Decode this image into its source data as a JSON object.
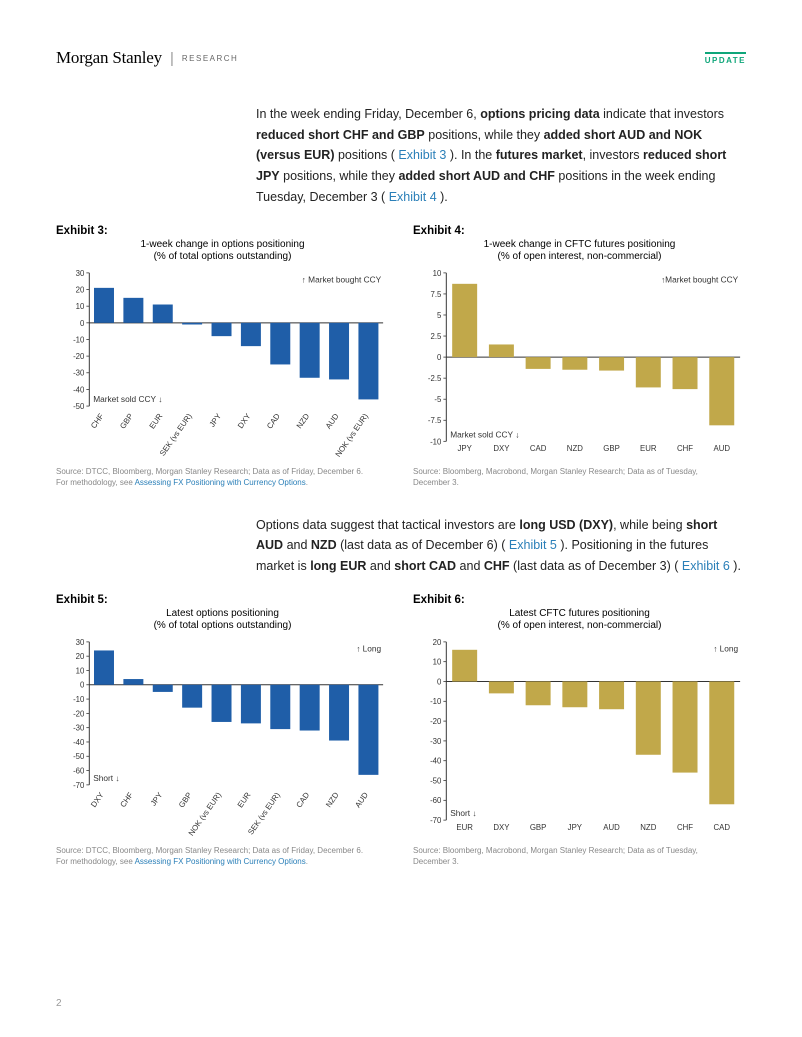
{
  "header": {
    "brand": "Morgan Stanley",
    "sep": "|",
    "research": "RESEARCH",
    "badge": "UPDATE"
  },
  "para1_parts": [
    {
      "t": "In the week ending Friday, December 6, ",
      "b": false
    },
    {
      "t": "options pricing data",
      "b": true
    },
    {
      "t": " indicate that investors ",
      "b": false
    },
    {
      "t": "reduced short CHF and GBP",
      "b": true
    },
    {
      "t": " positions, while they ",
      "b": false
    },
    {
      "t": "added short AUD and NOK (versus EUR)",
      "b": true
    },
    {
      "t": " positions ( ",
      "b": false
    },
    {
      "t": "Exhibit 3",
      "b": false,
      "link": true
    },
    {
      "t": " ). In the ",
      "b": false
    },
    {
      "t": "futures market",
      "b": true
    },
    {
      "t": ", investors ",
      "b": false
    },
    {
      "t": "reduced short JPY",
      "b": true
    },
    {
      "t": " positions, while they ",
      "b": false
    },
    {
      "t": "added short AUD and CHF",
      "b": true
    },
    {
      "t": " positions in the week ending Tuesday, December 3 ( ",
      "b": false
    },
    {
      "t": "Exhibit 4",
      "b": false,
      "link": true
    },
    {
      "t": " ).",
      "b": false
    }
  ],
  "para2_parts": [
    {
      "t": "Options data suggest that tactical investors are ",
      "b": false
    },
    {
      "t": "long USD (DXY)",
      "b": true
    },
    {
      "t": ", while being ",
      "b": false
    },
    {
      "t": "short AUD",
      "b": true
    },
    {
      "t": " and ",
      "b": false
    },
    {
      "t": "NZD",
      "b": true
    },
    {
      "t": " (last data as of December 6) ( ",
      "b": false
    },
    {
      "t": "Exhibit 5",
      "b": false,
      "link": true
    },
    {
      "t": " ). Positioning in the futures market is ",
      "b": false
    },
    {
      "t": "long EUR",
      "b": true
    },
    {
      "t": " and ",
      "b": false
    },
    {
      "t": "short CAD",
      "b": true
    },
    {
      "t": " and ",
      "b": false
    },
    {
      "t": "CHF",
      "b": true
    },
    {
      "t": " (last data as of December 3) ( ",
      "b": false
    },
    {
      "t": "Exhibit 6",
      "b": false,
      "link": true
    },
    {
      "t": " ).",
      "b": false
    }
  ],
  "ex3": {
    "title": "Exhibit 3:",
    "sub1": "1-week change in options positioning",
    "sub2": "(% of total options outstanding)",
    "type": "bar",
    "categories": [
      "CHF",
      "GBP",
      "EUR",
      "SEK (vs EUR)",
      "JPY",
      "DXY",
      "CAD",
      "NZD",
      "AUD",
      "NOK (vs EUR)"
    ],
    "values": [
      21,
      15,
      11,
      -1,
      -8,
      -14,
      -25,
      -33,
      -34,
      -46
    ],
    "bar_color": "#1f5ea8",
    "ymin": -50,
    "ymax": 30,
    "ytick_step": 10,
    "top_annot": "↑ Market bought CCY",
    "bottom_annot": "Market sold CCY ↓",
    "axis_color": "#333",
    "tick_fontsize": 8,
    "xlabel_rotate": -55
  },
  "ex4": {
    "title": "Exhibit 4:",
    "sub1": "1-week change in CFTC futures positioning",
    "sub2": "(% of open interest, non-commercial)",
    "type": "bar",
    "categories": [
      "JPY",
      "DXY",
      "CAD",
      "NZD",
      "GBP",
      "EUR",
      "CHF",
      "AUD"
    ],
    "values": [
      8.7,
      1.5,
      -1.4,
      -1.5,
      -1.6,
      -3.6,
      -3.8,
      -8.1
    ],
    "bar_color": "#c1a84a",
    "ymin": -10,
    "ymax": 10,
    "ytick_step": 2.5,
    "top_annot": "↑Market bought CCY",
    "bottom_annot": "Market sold CCY ↓",
    "axis_color": "#333",
    "tick_fontsize": 8,
    "xlabel_rotate": 0
  },
  "ex5": {
    "title": "Exhibit 5:",
    "sub1": "Latest options positioning",
    "sub2": "(% of total options outstanding)",
    "type": "bar",
    "categories": [
      "DXY",
      "CHF",
      "JPY",
      "GBP",
      "NOK (vs EUR)",
      "EUR",
      "SEK (vs EUR)",
      "CAD",
      "NZD",
      "AUD"
    ],
    "values": [
      24,
      4,
      -5,
      -16,
      -26,
      -27,
      -31,
      -32,
      -39,
      -63
    ],
    "bar_color": "#1f5ea8",
    "ymin": -70,
    "ymax": 30,
    "ytick_step": 10,
    "top_annot": "↑ Long",
    "bottom_annot": "Short ↓",
    "axis_color": "#333",
    "tick_fontsize": 8,
    "xlabel_rotate": -55
  },
  "ex6": {
    "title": "Exhibit 6:",
    "sub1": "Latest CFTC futures positioning",
    "sub2": "(% of open interest, non-commercial)",
    "type": "bar",
    "categories": [
      "EUR",
      "DXY",
      "GBP",
      "JPY",
      "AUD",
      "NZD",
      "CHF",
      "CAD"
    ],
    "values": [
      16,
      -6,
      -12,
      -13,
      -14,
      -37,
      -46,
      -62
    ],
    "bar_color": "#c1a84a",
    "ymin": -70,
    "ymax": 20,
    "ytick_step": 10,
    "top_annot": "↑ Long",
    "bottom_annot": "Short ↓",
    "axis_color": "#333",
    "tick_fontsize": 8,
    "xlabel_rotate": 0
  },
  "src3": {
    "line1": "Source: DTCC, Bloomberg, Morgan Stanley Research; Data as of Friday, December 6.",
    "line2a": "For methodology, see ",
    "link": "Assessing FX Positioning with Currency Options",
    "line2b": "."
  },
  "src4": {
    "line1": "Source: Bloomberg, Macrobond, Morgan Stanley Research; Data as of Tuesday,",
    "line2": "December 3."
  },
  "src5": {
    "line1": "Source: DTCC, Bloomberg, Morgan Stanley Research; Data as of Friday, December 6.",
    "line2a": "For methodology, see ",
    "link": "Assessing FX Positioning with Currency Options",
    "line2b": "."
  },
  "src6": {
    "line1": "Source: Bloomberg, Macrobond, Morgan Stanley Research; Data as of Tuesday,",
    "line2": "December 3."
  },
  "page_num": "2"
}
